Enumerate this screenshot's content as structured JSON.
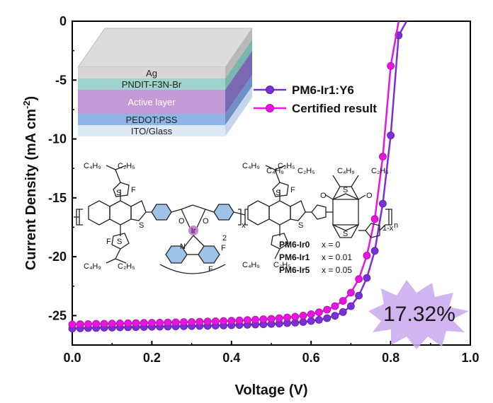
{
  "chart_data": {
    "type": "scatter",
    "xlabel": "Voltage (V)",
    "ylabel_main": "Current Density (mA cm",
    "ylabel_sup": "-2",
    "ylabel_close": ")",
    "xlim": [
      0.0,
      1.0
    ],
    "ylim": [
      -27.5,
      0
    ],
    "x_ticks": [
      "0.0",
      "0.2",
      "0.4",
      "0.6",
      "0.8",
      "1.0"
    ],
    "y_ticks": [
      "0",
      "-5",
      "-10",
      "-15",
      "-20",
      "-25"
    ],
    "grid": false,
    "legend_position": "upper-center",
    "series": [
      {
        "name": "PM6-Ir1:Y6",
        "color": "#7b2fd6",
        "x": [
          0.0,
          0.02,
          0.04,
          0.06,
          0.08,
          0.1,
          0.12,
          0.14,
          0.16,
          0.18,
          0.2,
          0.22,
          0.24,
          0.26,
          0.28,
          0.3,
          0.32,
          0.34,
          0.36,
          0.38,
          0.4,
          0.42,
          0.44,
          0.46,
          0.48,
          0.5,
          0.52,
          0.54,
          0.56,
          0.58,
          0.6,
          0.62,
          0.64,
          0.66,
          0.68,
          0.7,
          0.72,
          0.74,
          0.76,
          0.78,
          0.8,
          0.82,
          0.84
        ],
        "y": [
          -26.1,
          -26.08,
          -26.06,
          -26.05,
          -26.03,
          -26.02,
          -26.0,
          -25.99,
          -25.98,
          -25.97,
          -25.95,
          -25.94,
          -25.93,
          -25.92,
          -25.9,
          -25.89,
          -25.88,
          -25.87,
          -25.85,
          -25.84,
          -25.82,
          -25.8,
          -25.78,
          -25.76,
          -25.74,
          -25.71,
          -25.68,
          -25.64,
          -25.6,
          -25.54,
          -25.46,
          -25.36,
          -25.22,
          -25.02,
          -24.7,
          -24.2,
          -23.3,
          -21.8,
          -19.5,
          -15.5,
          -9.7,
          -1.2,
          0.0
        ]
      },
      {
        "name": "Certified result",
        "color": "#e815e0",
        "x": [
          0.0,
          0.02,
          0.04,
          0.06,
          0.08,
          0.1,
          0.12,
          0.14,
          0.16,
          0.18,
          0.2,
          0.22,
          0.24,
          0.26,
          0.28,
          0.3,
          0.32,
          0.34,
          0.36,
          0.38,
          0.4,
          0.42,
          0.44,
          0.46,
          0.48,
          0.5,
          0.52,
          0.54,
          0.56,
          0.58,
          0.6,
          0.62,
          0.64,
          0.66,
          0.68,
          0.7,
          0.72,
          0.74,
          0.76,
          0.78,
          0.8,
          0.82
        ],
        "y": [
          -25.75,
          -25.73,
          -25.72,
          -25.7,
          -25.69,
          -25.68,
          -25.66,
          -25.65,
          -25.64,
          -25.62,
          -25.61,
          -25.6,
          -25.58,
          -25.57,
          -25.55,
          -25.54,
          -25.52,
          -25.5,
          -25.48,
          -25.46,
          -25.44,
          -25.41,
          -25.38,
          -25.35,
          -25.31,
          -25.27,
          -25.22,
          -25.16,
          -25.09,
          -25.0,
          -24.88,
          -24.72,
          -24.5,
          -24.2,
          -23.75,
          -23.05,
          -21.9,
          -19.9,
          -16.8,
          -11.5,
          -3.8,
          0.0
        ]
      }
    ],
    "annotation": "17.32%"
  },
  "inset": {
    "device_layers": [
      "Ag",
      "PNDIT-F3N-Br",
      "Active layer",
      "PEDOT:PSS",
      "ITO/Glass"
    ],
    "polymer_labels": [
      {
        "name": "PM6-Ir0",
        "value": "x = 0"
      },
      {
        "name": "PM6-Ir1",
        "value": "x = 0.01"
      },
      {
        "name": "PM6-Ir5",
        "value": "x = 0.05"
      }
    ],
    "atoms": {
      "ir": "Ir",
      "n": "N",
      "f": "F",
      "s": "S",
      "o": "O",
      "alkyl_left": "C₄H₉",
      "alkyl_right": "C₂H₅",
      "subscript_x": "x",
      "subscript_n": "n",
      "subscript_1x": "1-x",
      "subscript_2": "2"
    }
  }
}
